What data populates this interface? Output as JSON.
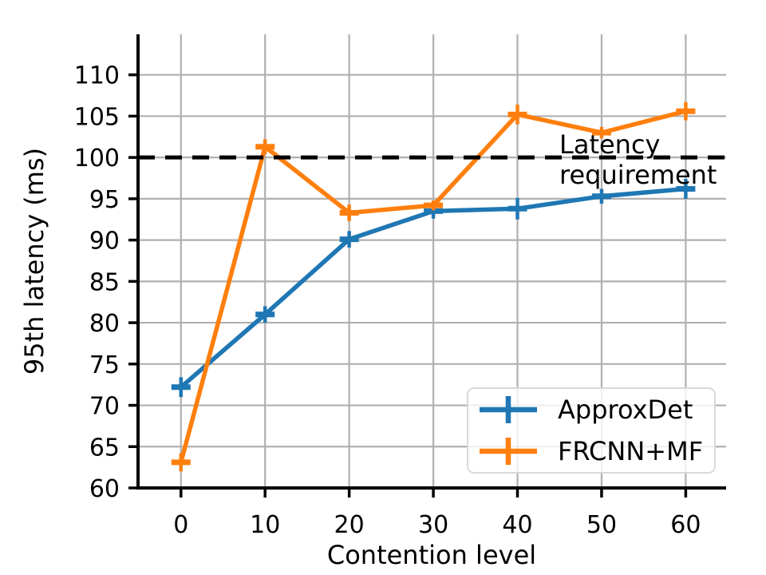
{
  "figure": {
    "background": "#ffffff"
  },
  "chart_data": {
    "type": "line",
    "x": [
      0,
      10,
      20,
      30,
      40,
      50,
      60
    ],
    "series": [
      {
        "name": "ApproxDet",
        "color": "#1f77b4",
        "values": [
          72.2,
          81.0,
          90.1,
          93.5,
          93.8,
          95.3,
          96.2
        ],
        "yerr": [
          1.2,
          1.0,
          1.0,
          0.9,
          1.3,
          0.9,
          1.2
        ]
      },
      {
        "name": "FRCNN+MF",
        "color": "#ff7f0e",
        "values": [
          63.1,
          101.3,
          93.3,
          94.2,
          105.2,
          103.0,
          105.6
        ],
        "yerr": [
          1.1,
          0.9,
          1.0,
          0.6,
          1.2,
          0.7,
          1.1
        ]
      }
    ],
    "xlabel": "Contention level",
    "ylabel": "95th latency (ms)",
    "xticks": [
      0,
      10,
      20,
      30,
      40,
      50,
      60
    ],
    "yticks": [
      60,
      65,
      70,
      75,
      80,
      85,
      90,
      95,
      100,
      105,
      110
    ],
    "xlim": [
      -5.1,
      64.8
    ],
    "ylim": [
      60,
      114.9
    ],
    "grid": true,
    "grid_color": "#b0b0b0",
    "axis_color": "#000000",
    "reference_line": {
      "y": 100,
      "color": "#000000",
      "style": "dashed",
      "label_line1": "Latency",
      "label_line2": "requirement"
    },
    "legend": {
      "position": "lower right"
    }
  }
}
